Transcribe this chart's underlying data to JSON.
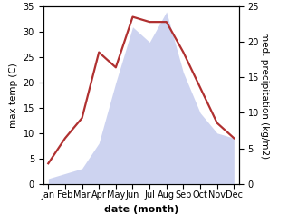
{
  "months": [
    "Jan",
    "Feb",
    "Mar",
    "Apr",
    "May",
    "Jun",
    "Jul",
    "Aug",
    "Sep",
    "Oct",
    "Nov",
    "Dec"
  ],
  "temp_max": [
    4,
    9,
    13,
    26,
    23,
    33,
    32,
    32,
    26,
    19,
    12,
    9
  ],
  "precip": [
    1,
    2,
    3,
    8,
    20,
    31,
    28,
    34,
    22,
    14,
    10,
    9
  ],
  "temp_ylim": [
    0,
    35
  ],
  "precip_ylim": [
    0,
    25
  ],
  "precip_scale": 1.4,
  "temp_color": "#b03030",
  "precip_color": "#c5ccee",
  "bg_color": "#ffffff",
  "ylabel_left": "max temp (C)",
  "ylabel_right": "med. precipitation (kg/m2)",
  "xlabel": "date (month)",
  "label_fontsize": 7.5,
  "tick_fontsize": 7,
  "line_width": 1.6
}
